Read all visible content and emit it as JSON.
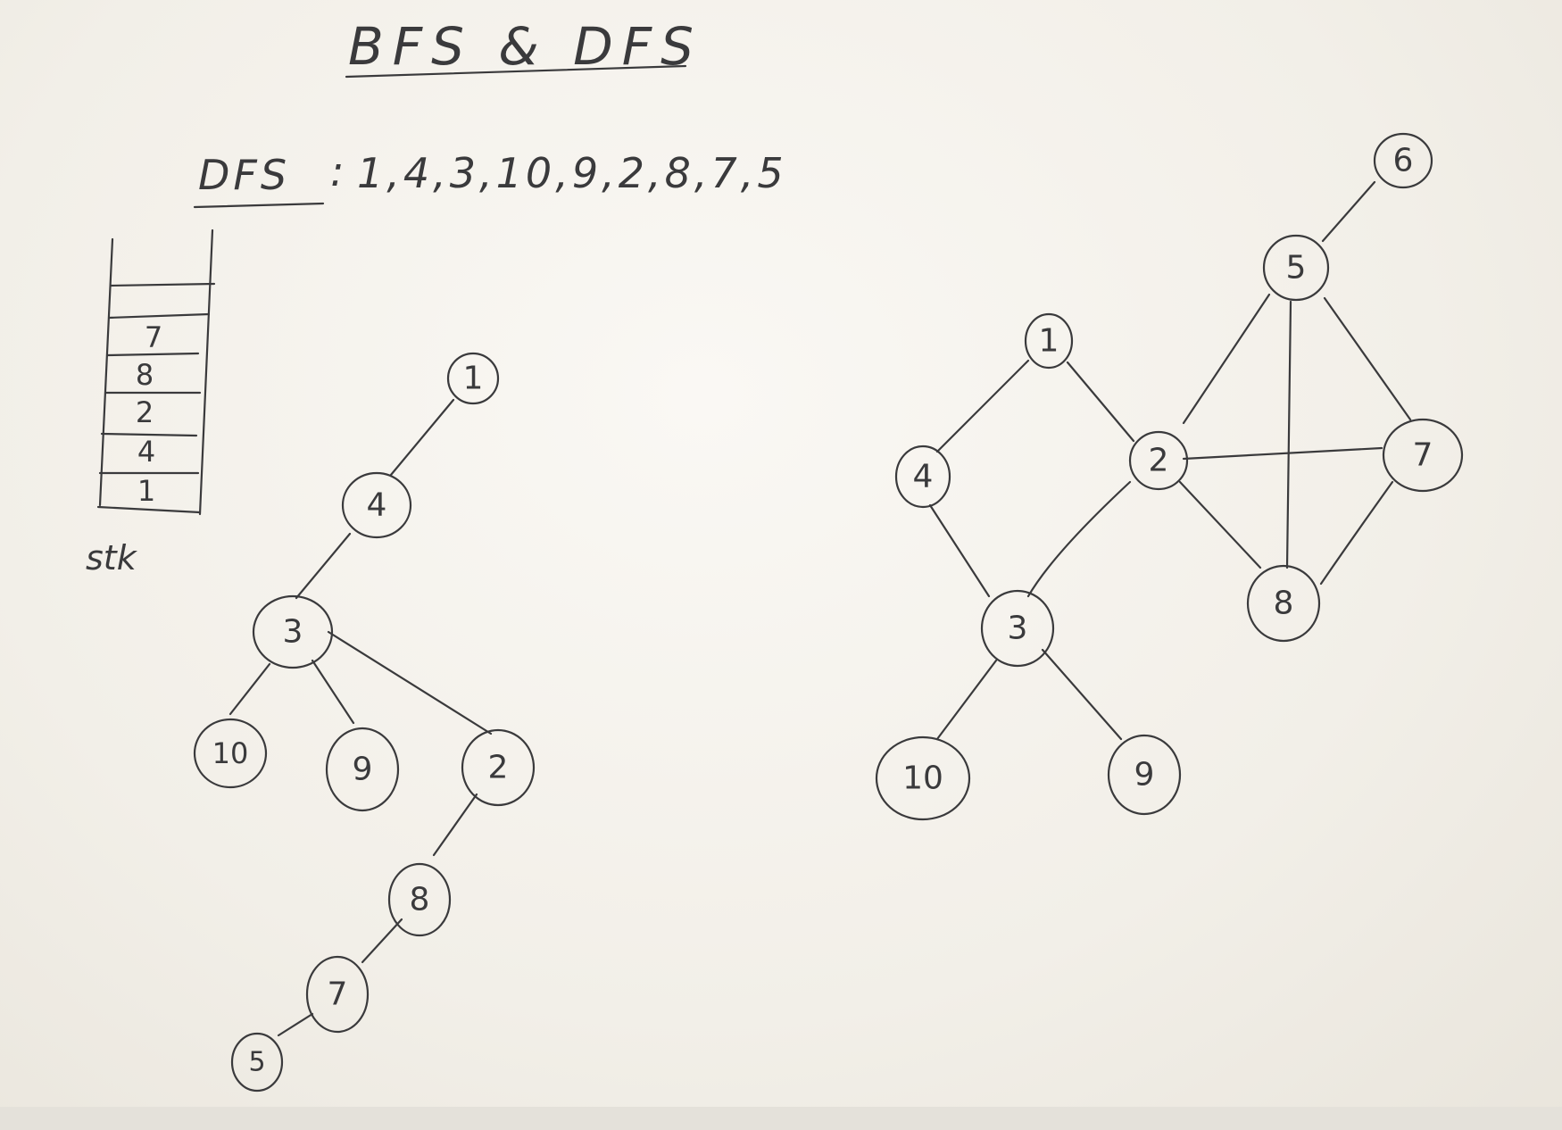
{
  "title": "BFS & DFS",
  "dfs": {
    "label": "DFS",
    "sequence": "1,4,3,10,9,2,8,7,5"
  },
  "stack": {
    "label": "stk",
    "items": [
      "7",
      "8",
      "2",
      "4",
      "1"
    ]
  },
  "dfs_tree": {
    "nodes": [
      "1",
      "4",
      "3",
      "10",
      "9",
      "2",
      "8",
      "7",
      "5"
    ],
    "edges": [
      [
        "1",
        "4"
      ],
      [
        "4",
        "3"
      ],
      [
        "3",
        "10"
      ],
      [
        "3",
        "9"
      ],
      [
        "3",
        "2"
      ],
      [
        "2",
        "8"
      ],
      [
        "8",
        "7"
      ],
      [
        "7",
        "5"
      ]
    ]
  },
  "graph": {
    "nodes": [
      "1",
      "2",
      "3",
      "4",
      "5",
      "6",
      "7",
      "8",
      "9",
      "10"
    ],
    "edges": [
      [
        "1",
        "4"
      ],
      [
        "1",
        "2"
      ],
      [
        "4",
        "3"
      ],
      [
        "2",
        "3"
      ],
      [
        "2",
        "7"
      ],
      [
        "2",
        "8"
      ],
      [
        "2",
        "5"
      ],
      [
        "5",
        "6"
      ],
      [
        "5",
        "7"
      ],
      [
        "5",
        "8"
      ],
      [
        "7",
        "8"
      ],
      [
        "3",
        "10"
      ],
      [
        "3",
        "9"
      ]
    ]
  }
}
